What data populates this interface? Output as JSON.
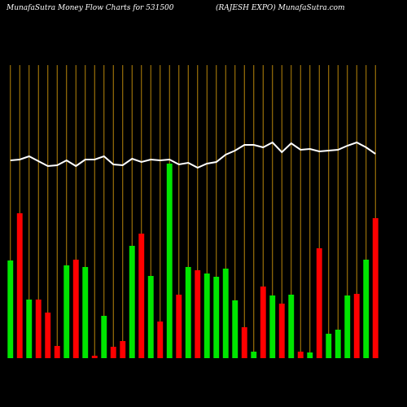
{
  "chart_data": {
    "type": "bar",
    "title": "MunafaSutra  Money Flow  Charts for 531500",
    "subtitle": "(RAJESH EXPO) MunafaSutra.com",
    "categories": [
      null,
      null,
      null,
      null,
      null,
      null,
      null,
      null,
      null,
      null,
      null,
      null,
      null,
      null,
      null,
      null,
      null,
      null,
      null,
      null,
      null,
      null,
      null,
      null,
      null,
      null,
      null,
      null,
      null,
      null,
      null,
      null,
      null,
      null,
      null,
      null,
      null,
      null,
      null,
      null
    ],
    "values": [
      120,
      178,
      72,
      72,
      56,
      15,
      114,
      121,
      112,
      3,
      52,
      14,
      21,
      138,
      153,
      101,
      45,
      239,
      78,
      112,
      108,
      104,
      100,
      110,
      71,
      38,
      8,
      88,
      77,
      67,
      78,
      8,
      7,
      135,
      30,
      35,
      77,
      79,
      121,
      172
    ],
    "colors": [
      "#00e600",
      "#ff0000",
      "#00e600",
      "#ff0000",
      "#ff0000",
      "#ff0000",
      "#00e600",
      "#ff0000",
      "#00e600",
      "#ff0000",
      "#00e600",
      "#ff0000",
      "#ff0000",
      "#00e600",
      "#ff0000",
      "#00e600",
      "#ff0000",
      "#00e600",
      "#ff0000",
      "#00e600",
      "#ff0000",
      "#00e600",
      "#00e600",
      "#00e600",
      "#00e600",
      "#ff0000",
      "#00e600",
      "#ff0000",
      "#00e600",
      "#ff0000",
      "#00e600",
      "#ff0000",
      "#00e600",
      "#ff0000",
      "#00e600",
      "#00e600",
      "#00e600",
      "#ff0000",
      "#00e600",
      "#ff0000"
    ],
    "line": {
      "color": "#ffffff",
      "values": [
        243,
        244,
        248,
        242,
        236,
        237,
        243,
        236,
        244,
        244,
        248,
        238,
        237,
        245,
        241,
        244,
        243,
        244,
        238,
        240,
        234,
        239,
        241,
        250,
        255,
        262,
        262,
        259,
        265,
        253,
        264,
        256,
        257,
        254,
        255,
        256,
        261,
        265,
        259,
        251
      ]
    },
    "ylim": [
      0,
      360
    ],
    "grid": true,
    "grid_color": "#b8860b"
  }
}
